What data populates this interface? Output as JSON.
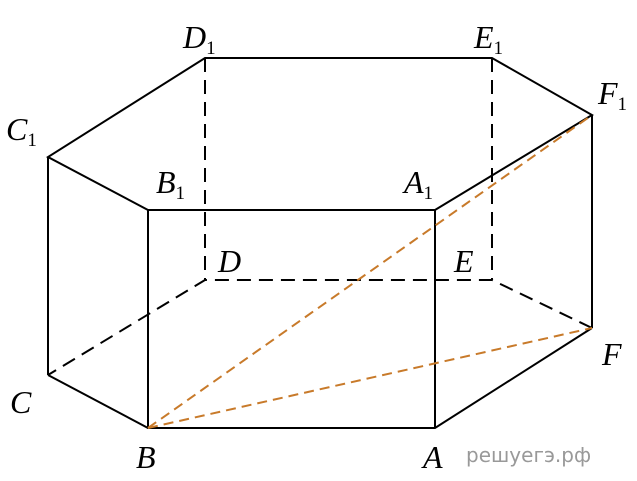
{
  "labels": {
    "D1": {
      "letter": "D",
      "sub": "1"
    },
    "E1": {
      "letter": "E",
      "sub": "1"
    },
    "F1": {
      "letter": "F",
      "sub": "1"
    },
    "C1": {
      "letter": "C",
      "sub": "1"
    },
    "B1": {
      "letter": "B",
      "sub": "1"
    },
    "A1": {
      "letter": "A",
      "sub": "1"
    },
    "D": {
      "letter": "D"
    },
    "E": {
      "letter": "E"
    },
    "F": {
      "letter": "F"
    },
    "C": {
      "letter": "C"
    },
    "B": {
      "letter": "B"
    },
    "A": {
      "letter": "A"
    }
  },
  "watermark": "решуегэ.рф"
}
